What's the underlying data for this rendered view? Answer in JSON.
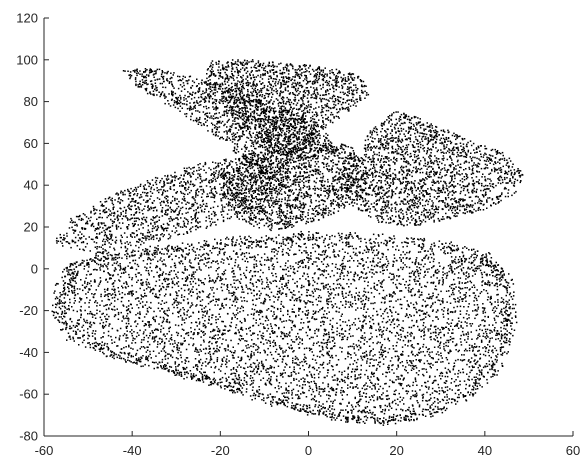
{
  "chart_data": {
    "type": "scatter",
    "title": "",
    "xlabel": "",
    "ylabel": "",
    "xlim": [
      -60,
      60
    ],
    "ylim": [
      -80,
      120
    ],
    "x_ticks": [
      "-60",
      "-40",
      "-20",
      "0",
      "20",
      "40",
      "60"
    ],
    "y_ticks": [
      "-80",
      "-60",
      "-40",
      "-20",
      "0",
      "20",
      "40",
      "60",
      "80",
      "100",
      "120"
    ],
    "grid": false,
    "legend": "none",
    "point_color": "#000000",
    "axis_color": "#262626",
    "series": [
      {
        "marker": "dot",
        "regions": [
          {
            "part": "base",
            "points_approx": 5200,
            "outline": [
              [
                -58,
                -10
              ],
              [
                -55,
                -28
              ],
              [
                -50,
                -36
              ],
              [
                -44,
                -40
              ],
              [
                -36,
                -46
              ],
              [
                -28,
                -52
              ],
              [
                -18,
                -58
              ],
              [
                -8,
                -64
              ],
              [
                2,
                -70
              ],
              [
                10,
                -73
              ],
              [
                20,
                -73
              ],
              [
                28,
                -68
              ],
              [
                36,
                -60
              ],
              [
                42,
                -48
              ],
              [
                45,
                -32
              ],
              [
                46,
                -16
              ],
              [
                45,
                -2
              ],
              [
                41,
                6
              ],
              [
                33,
                10
              ],
              [
                22,
                13
              ],
              [
                10,
                16
              ],
              [
                -2,
                17
              ],
              [
                -14,
                14
              ],
              [
                -26,
                11
              ],
              [
                -38,
                9
              ],
              [
                -48,
                6
              ],
              [
                -55,
                2
              ]
            ]
          },
          {
            "part": "ring-edge",
            "points_approx": 900,
            "outline": [
              [
                -57,
                -20
              ],
              [
                -53,
                -34
              ],
              [
                -44,
                -41
              ],
              [
                -33,
                -47
              ],
              [
                -22,
                -54
              ],
              [
                -10,
                -62
              ],
              [
                4,
                -70
              ],
              [
                16,
                -73
              ],
              [
                28,
                -69
              ],
              [
                38,
                -58
              ],
              [
                44,
                -42
              ],
              [
                46,
                -24
              ],
              [
                45,
                -6
              ],
              [
                40,
                6
              ],
              [
                30,
                12
              ],
              [
                16,
                15
              ],
              [
                0,
                16
              ],
              [
                -16,
                14
              ],
              [
                -30,
                10
              ],
              [
                -44,
                7
              ],
              [
                -53,
                2
              ]
            ]
          },
          {
            "part": "left-wing",
            "points_approx": 1300,
            "outline": [
              [
                -58,
                12
              ],
              [
                -54,
                24
              ],
              [
                -44,
                36
              ],
              [
                -32,
                46
              ],
              [
                -20,
                53
              ],
              [
                -10,
                52
              ],
              [
                -4,
                44
              ],
              [
                -10,
                30
              ],
              [
                -22,
                20
              ],
              [
                -36,
                12
              ],
              [
                -48,
                6
              ]
            ]
          },
          {
            "part": "upper-left-arm",
            "points_approx": 1200,
            "outline": [
              [
                -43,
                95
              ],
              [
                -35,
                96
              ],
              [
                -26,
                92
              ],
              [
                -18,
                88
              ],
              [
                -10,
                80
              ],
              [
                -2,
                74
              ],
              [
                4,
                68
              ],
              [
                6,
                56
              ],
              [
                -4,
                50
              ],
              [
                -14,
                50
              ],
              [
                -20,
                62
              ],
              [
                -30,
                76
              ],
              [
                -40,
                88
              ]
            ]
          },
          {
            "part": "top-crest",
            "points_approx": 1600,
            "outline": [
              [
                -22,
                100
              ],
              [
                -12,
                100
              ],
              [
                -2,
                98
              ],
              [
                6,
                96
              ],
              [
                12,
                92
              ],
              [
                14,
                84
              ],
              [
                10,
                76
              ],
              [
                4,
                68
              ],
              [
                0,
                58
              ],
              [
                -6,
                54
              ],
              [
                -14,
                62
              ],
              [
                -18,
                76
              ],
              [
                -24,
                90
              ]
            ]
          },
          {
            "part": "central-mass",
            "points_approx": 1500,
            "outline": [
              [
                -16,
                54
              ],
              [
                -6,
                58
              ],
              [
                4,
                62
              ],
              [
                10,
                58
              ],
              [
                14,
                46
              ],
              [
                12,
                34
              ],
              [
                6,
                26
              ],
              [
                -2,
                20
              ],
              [
                -10,
                18
              ],
              [
                -16,
                24
              ],
              [
                -20,
                36
              ],
              [
                -20,
                46
              ]
            ]
          },
          {
            "part": "right-wing",
            "points_approx": 1900,
            "outline": [
              [
                10,
                52
              ],
              [
                14,
                66
              ],
              [
                20,
                76
              ],
              [
                28,
                70
              ],
              [
                36,
                62
              ],
              [
                44,
                56
              ],
              [
                49,
                46
              ],
              [
                47,
                36
              ],
              [
                40,
                28
              ],
              [
                32,
                24
              ],
              [
                24,
                20
              ],
              [
                16,
                22
              ],
              [
                10,
                30
              ],
              [
                8,
                42
              ]
            ]
          }
        ]
      }
    ]
  }
}
